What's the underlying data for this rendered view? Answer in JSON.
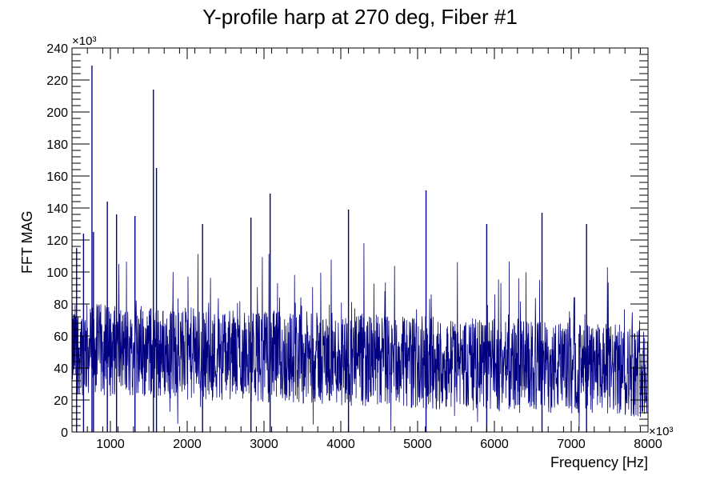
{
  "chart_data": {
    "type": "line",
    "title": "Y-profile harp at 270 deg, Fiber #1",
    "xlabel": "Frequency [Hz]",
    "ylabel": "FFT MAG",
    "x_multiplier_label": "×10³",
    "y_multiplier_label": "×10³",
    "xlim": [
      500,
      8000
    ],
    "ylim": [
      0,
      240
    ],
    "x_ticks": [
      1000,
      2000,
      3000,
      4000,
      5000,
      6000,
      7000,
      8000
    ],
    "x_tick_labels": [
      "1000",
      "2000",
      "3000",
      "4000",
      "5000",
      "6000",
      "7000",
      "8000"
    ],
    "y_ticks": [
      0,
      20,
      40,
      60,
      80,
      100,
      120,
      140,
      160,
      180,
      200,
      220,
      240
    ],
    "y_tick_labels": [
      "0",
      "20",
      "40",
      "60",
      "80",
      "100",
      "120",
      "140",
      "160",
      "180",
      "200",
      "220",
      "240"
    ],
    "line_color": "#000080",
    "grid": false,
    "legend": "none",
    "peaks": [
      {
        "x": 560,
        "y": 115
      },
      {
        "x": 650,
        "y": 124
      },
      {
        "x": 760,
        "y": 229
      },
      {
        "x": 780,
        "y": 125
      },
      {
        "x": 960,
        "y": 144
      },
      {
        "x": 1080,
        "y": 136
      },
      {
        "x": 1320,
        "y": 135
      },
      {
        "x": 1560,
        "y": 214
      },
      {
        "x": 1600,
        "y": 165
      },
      {
        "x": 2200,
        "y": 130
      },
      {
        "x": 2830,
        "y": 134
      },
      {
        "x": 3080,
        "y": 149
      },
      {
        "x": 4100,
        "y": 139
      },
      {
        "x": 5110,
        "y": 151
      },
      {
        "x": 5900,
        "y": 130
      },
      {
        "x": 6620,
        "y": 137
      },
      {
        "x": 7200,
        "y": 130
      }
    ]
  }
}
